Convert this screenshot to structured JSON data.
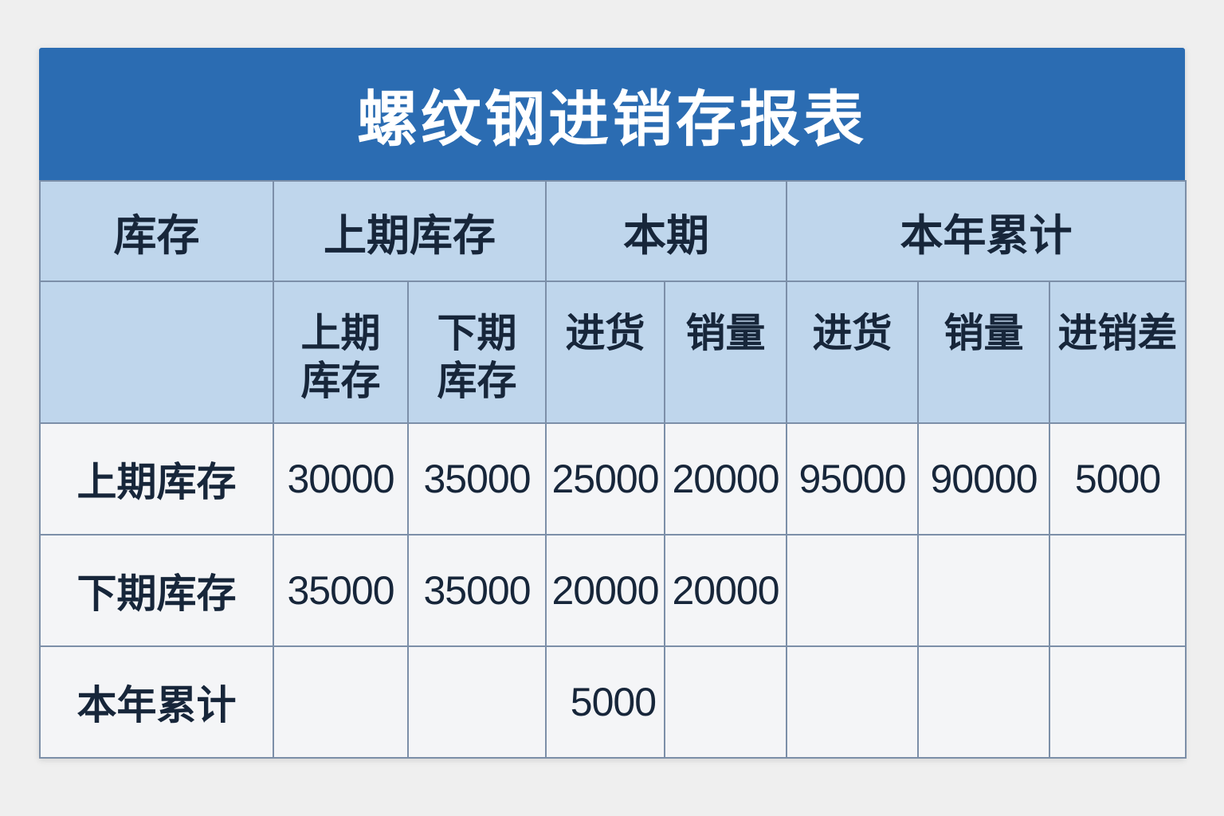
{
  "title": "螺纹钢进销存报表",
  "colors": {
    "title_bg": "#2b6cb2",
    "header_bg": "#bfd6ec",
    "body_bg": "#f4f5f7",
    "border": "#7c8fa8",
    "text": "#17263a"
  },
  "header_row1": [
    "库存",
    "上期库存",
    "本期",
    "本年累计"
  ],
  "header_row2": [
    "",
    "上期\n库存",
    "下期\n库存",
    "进货",
    "销量",
    "进货",
    "销量",
    "进销差"
  ],
  "rows": [
    {
      "label": "上期库存",
      "cells": [
        "30000",
        "35000",
        "25000",
        "20000",
        "95000",
        "90000",
        "5000"
      ]
    },
    {
      "label": "下期库存",
      "cells": [
        "35000",
        "35000",
        "20000",
        "20000",
        "",
        "",
        ""
      ]
    },
    {
      "label": "本年累计",
      "cells": [
        "",
        "",
        "5000",
        "",
        "",
        "",
        ""
      ]
    }
  ]
}
